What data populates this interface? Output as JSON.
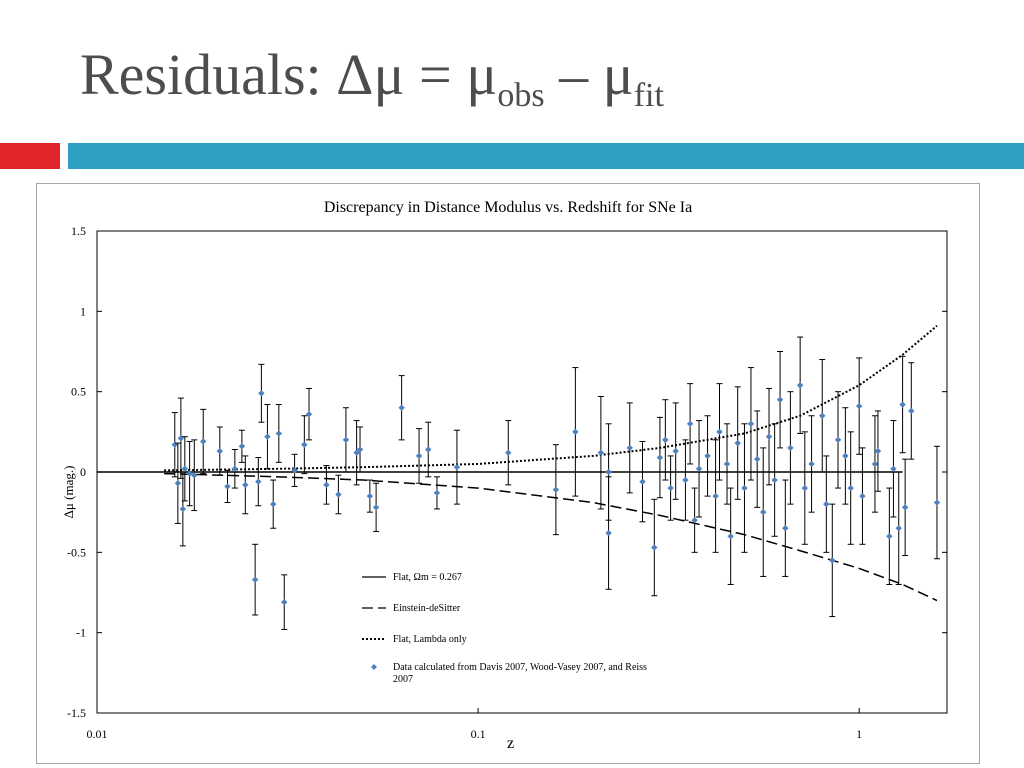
{
  "slide": {
    "title_main": "Residuals: Δμ = μ",
    "title_sub1": "obs",
    "title_mid": " – μ",
    "title_sub2": "fit",
    "accent_red": "#e0252b",
    "accent_blue": "#2d9fc2"
  },
  "chart_data": {
    "type": "scatter",
    "title": "Discrepancy in Distance Modulus vs. Redshift for SNe Ia",
    "xlabel": "z",
    "ylabel": "Δμ (mag.)",
    "x_scale": "log",
    "xlim": [
      0.01,
      1.7
    ],
    "ylim": [
      -1.5,
      1.5
    ],
    "x_ticks": [
      {
        "v": 0.01,
        "label": "0.01"
      },
      {
        "v": 0.1,
        "label": "0.1"
      },
      {
        "v": 1,
        "label": "1"
      }
    ],
    "y_ticks": [
      {
        "v": 1.5,
        "label": "1.5"
      },
      {
        "v": 1,
        "label": "1"
      },
      {
        "v": 0.5,
        "label": "0.5"
      },
      {
        "v": 0,
        "label": "0"
      },
      {
        "v": -0.5,
        "label": "-0.5"
      },
      {
        "v": -1,
        "label": "-1"
      },
      {
        "v": -1.5,
        "label": "-1.5"
      }
    ],
    "grid": false,
    "legend_position": "lower-center",
    "point_color": "#4f81bd",
    "series": [
      {
        "name": "Flat, Ωm = 0.267",
        "style": "solid",
        "x": [
          0.01,
          0.1,
          0.3,
          0.5,
          0.7,
          1.0,
          1.3
        ],
        "y": [
          0,
          0,
          0,
          0,
          0,
          0,
          0
        ]
      },
      {
        "name": "Einstein-deSitter",
        "style": "dashed",
        "x": [
          0.015,
          0.03,
          0.05,
          0.1,
          0.2,
          0.3,
          0.5,
          0.7,
          1.0,
          1.3,
          1.6
        ],
        "y": [
          -0.01,
          -0.03,
          -0.05,
          -0.1,
          -0.19,
          -0.27,
          -0.39,
          -0.49,
          -0.6,
          -0.7,
          -0.8
        ]
      },
      {
        "name": "Flat, Lambda only",
        "style": "dotted",
        "x": [
          0.015,
          0.03,
          0.05,
          0.1,
          0.2,
          0.3,
          0.5,
          0.7,
          1.0,
          1.3,
          1.6
        ],
        "y": [
          0.01,
          0.02,
          0.03,
          0.05,
          0.1,
          0.15,
          0.24,
          0.35,
          0.54,
          0.73,
          0.91
        ]
      },
      {
        "name": "Data calculated from Davis 2007, Wood-Vasey 2007, and Reiss 2007",
        "style": "points",
        "points": [
          [
            0.016,
            0.17,
            0.2
          ],
          [
            0.0163,
            -0.07,
            0.25
          ],
          [
            0.0166,
            0.21,
            0.25
          ],
          [
            0.0168,
            -0.23,
            0.23
          ],
          [
            0.017,
            0.02,
            0.2
          ],
          [
            0.0175,
            -0.01,
            0.2
          ],
          [
            0.018,
            -0.02,
            0.22
          ],
          [
            0.019,
            0.19,
            0.2
          ],
          [
            0.021,
            0.13,
            0.15
          ],
          [
            0.022,
            -0.09,
            0.1
          ],
          [
            0.023,
            0.02,
            0.12
          ],
          [
            0.024,
            0.16,
            0.1
          ],
          [
            0.0245,
            -0.08,
            0.18
          ],
          [
            0.026,
            -0.67,
            0.22
          ],
          [
            0.0265,
            -0.06,
            0.15
          ],
          [
            0.027,
            0.49,
            0.18
          ],
          [
            0.028,
            0.22,
            0.2
          ],
          [
            0.029,
            -0.2,
            0.15
          ],
          [
            0.03,
            0.24,
            0.18
          ],
          [
            0.031,
            -0.81,
            0.17
          ],
          [
            0.033,
            0.01,
            0.1
          ],
          [
            0.035,
            0.17,
            0.18
          ],
          [
            0.036,
            0.36,
            0.16
          ],
          [
            0.04,
            -0.08,
            0.12
          ],
          [
            0.043,
            -0.14,
            0.12
          ],
          [
            0.045,
            0.2,
            0.2
          ],
          [
            0.048,
            0.12,
            0.2
          ],
          [
            0.049,
            0.14,
            0.14
          ],
          [
            0.052,
            -0.15,
            0.1
          ],
          [
            0.054,
            -0.22,
            0.15
          ],
          [
            0.063,
            0.4,
            0.2
          ],
          [
            0.07,
            0.1,
            0.17
          ],
          [
            0.074,
            0.14,
            0.17
          ],
          [
            0.078,
            -0.13,
            0.1
          ],
          [
            0.088,
            0.03,
            0.23
          ],
          [
            0.12,
            0.12,
            0.2
          ],
          [
            0.16,
            -0.11,
            0.28
          ],
          [
            0.18,
            0.25,
            0.4
          ],
          [
            0.21,
            0.12,
            0.35
          ],
          [
            0.22,
            -0.38,
            0.35
          ],
          [
            0.22,
            0.0,
            0.3
          ],
          [
            0.25,
            0.15,
            0.28
          ],
          [
            0.27,
            -0.06,
            0.25
          ],
          [
            0.29,
            -0.47,
            0.3
          ],
          [
            0.3,
            0.09,
            0.25
          ],
          [
            0.31,
            0.2,
            0.25
          ],
          [
            0.32,
            -0.1,
            0.2
          ],
          [
            0.33,
            0.13,
            0.3
          ],
          [
            0.35,
            -0.05,
            0.25
          ],
          [
            0.36,
            0.3,
            0.25
          ],
          [
            0.37,
            -0.3,
            0.2
          ],
          [
            0.38,
            0.02,
            0.3
          ],
          [
            0.4,
            0.1,
            0.25
          ],
          [
            0.42,
            -0.15,
            0.35
          ],
          [
            0.43,
            0.25,
            0.3
          ],
          [
            0.45,
            0.05,
            0.25
          ],
          [
            0.46,
            -0.4,
            0.3
          ],
          [
            0.48,
            0.18,
            0.35
          ],
          [
            0.5,
            -0.1,
            0.4
          ],
          [
            0.52,
            0.3,
            0.35
          ],
          [
            0.54,
            0.08,
            0.3
          ],
          [
            0.56,
            -0.25,
            0.4
          ],
          [
            0.58,
            0.22,
            0.3
          ],
          [
            0.6,
            -0.05,
            0.35
          ],
          [
            0.62,
            0.45,
            0.3
          ],
          [
            0.64,
            -0.35,
            0.3
          ],
          [
            0.66,
            0.15,
            0.35
          ],
          [
            0.7,
            0.54,
            0.3
          ],
          [
            0.72,
            -0.1,
            0.35
          ],
          [
            0.75,
            0.05,
            0.3
          ],
          [
            0.8,
            0.35,
            0.35
          ],
          [
            0.82,
            -0.2,
            0.3
          ],
          [
            0.85,
            -0.55,
            0.35
          ],
          [
            0.88,
            0.2,
            0.3
          ],
          [
            0.92,
            0.1,
            0.3
          ],
          [
            0.95,
            -0.1,
            0.35
          ],
          [
            1.0,
            0.41,
            0.3
          ],
          [
            1.02,
            -0.15,
            0.3
          ],
          [
            1.1,
            0.05,
            0.3
          ],
          [
            1.12,
            0.13,
            0.25
          ],
          [
            1.2,
            -0.4,
            0.3
          ],
          [
            1.23,
            0.02,
            0.3
          ],
          [
            1.27,
            -0.35,
            0.35
          ],
          [
            1.3,
            0.42,
            0.3
          ],
          [
            1.32,
            -0.22,
            0.3
          ],
          [
            1.37,
            0.38,
            0.3
          ],
          [
            1.6,
            -0.19,
            0.35
          ]
        ]
      }
    ]
  }
}
